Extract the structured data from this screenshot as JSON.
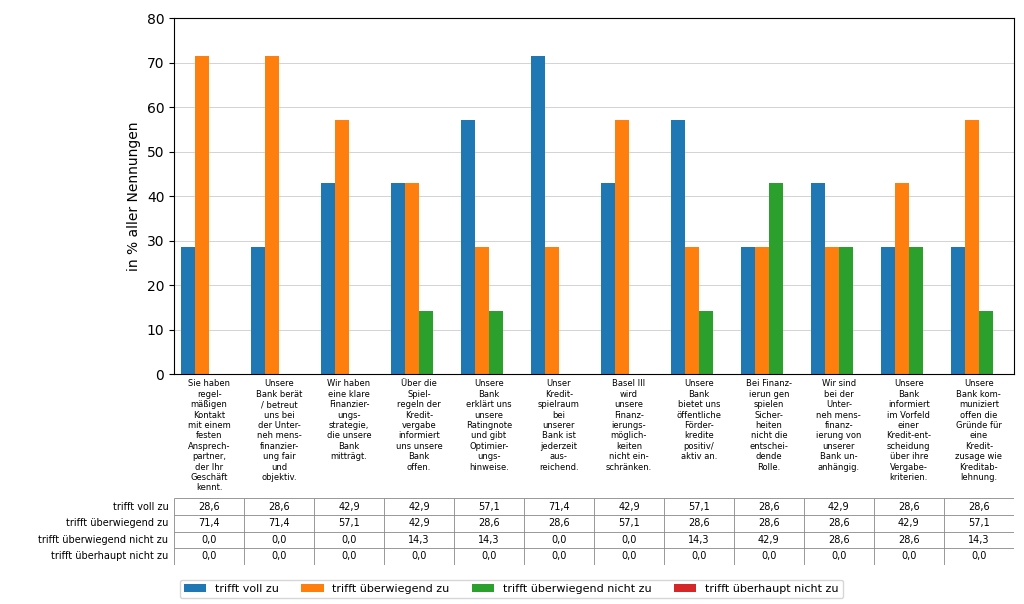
{
  "chart_data": {
    "type": "bar",
    "categories": [
      "Sie haben\nregel-\nmäßigen\nKontakt\nmit einem\nfesten\nAnsprech-\npartner,\nder Ihr\nGeschäft\nkennt.",
      "Unsere\nBank berät\n/ betreut\nuns bei\nder Unter-\nneh mens-\nfinanzier-\nung fair\nund\nobjektiv.",
      "Wir haben\neine klare\nFinanzier-\nungs-\nstrategie,\ndie unsere\nBank\nmitträgt.",
      "Über die\nSpiel-\nregeln der\nKredit-\nvergabe\ninformiert\nuns unsere\nBank\noffen.",
      "Unsere\nBank\nerklärt uns\nunsere\nRatingnote\nund gibt\nOptimier-\nungs-\nhinweise.",
      "Unser\nKredit-\nspielraum\nbei\nunserer\nBank ist\njederzeit\naus-\nreichend.",
      "Basel III\nwird\nunsere\nFinanz-\nierungs-\nmöglich-\nkeiten\nnicht ein-\nschränken.",
      "Unsere\nBank\nbietet uns\nöffentliche\nFörder-\nkredite\npositiv/\naktiv an.",
      "Bei Finanz-\nierun gen\nspielen\nSicher-\nheiten\nnicht die\nentschei-\ndende\nRolle.",
      "Wir sind\nbei der\nUnter-\nneh mens-\nfinanz-\nierung von\nunserer\nBank un-\nanhängig.",
      "Unsere\nBank\ninformiert\nim Vorfeld\neiner\nKredit-ent-\nscheidung\nüber ihre\nVergabe-\nkriterien.",
      "Unsere\nBank kom-\nmuniziert\noffen die\nGründe für\neine\nKredit-\nzusage wie\nKreditab-\nlehnung."
    ],
    "series": [
      {
        "name": "trifft voll zu",
        "values": [
          28.6,
          28.6,
          42.9,
          42.9,
          57.1,
          71.4,
          42.9,
          57.1,
          28.6,
          42.9,
          28.6,
          28.6
        ],
        "value_labels": [
          "28,6",
          "28,6",
          "42,9",
          "42,9",
          "57,1",
          "71,4",
          "42,9",
          "57,1",
          "28,6",
          "42,9",
          "28,6",
          "28,6"
        ]
      },
      {
        "name": "trifft überwiegend zu",
        "values": [
          71.4,
          71.4,
          57.1,
          42.9,
          28.6,
          28.6,
          57.1,
          28.6,
          28.6,
          28.6,
          42.9,
          57.1
        ],
        "value_labels": [
          "71,4",
          "71,4",
          "57,1",
          "42,9",
          "28,6",
          "28,6",
          "57,1",
          "28,6",
          "28,6",
          "28,6",
          "42,9",
          "57,1"
        ]
      },
      {
        "name": "trifft überwiegend nicht zu",
        "values": [
          0.0,
          0.0,
          0.0,
          14.3,
          14.3,
          0.0,
          0.0,
          14.3,
          42.9,
          28.6,
          28.6,
          14.3
        ],
        "value_labels": [
          "0,0",
          "0,0",
          "0,0",
          "14,3",
          "14,3",
          "0,0",
          "0,0",
          "14,3",
          "42,9",
          "28,6",
          "28,6",
          "14,3"
        ]
      },
      {
        "name": "trifft überhaupt nicht zu",
        "values": [
          0.0,
          0.0,
          0.0,
          0.0,
          0.0,
          0.0,
          0.0,
          0.0,
          0.0,
          0.0,
          0.0,
          0.0
        ],
        "value_labels": [
          "0,0",
          "0,0",
          "0,0",
          "0,0",
          "0,0",
          "0,0",
          "0,0",
          "0,0",
          "0,0",
          "0,0",
          "0,0",
          "0,0"
        ]
      }
    ],
    "ylabel": "in % aller Nennungen",
    "ylim": [
      0,
      80
    ],
    "yticks": [
      0,
      10,
      20,
      30,
      40,
      50,
      60,
      70,
      80
    ],
    "grid": true,
    "legend": "lower left"
  }
}
